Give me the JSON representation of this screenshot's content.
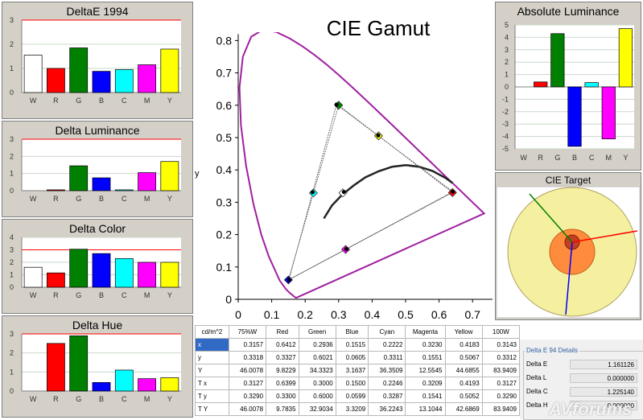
{
  "bar_panels": [
    {
      "title": "DeltaE 1994",
      "categories": [
        "W",
        "R",
        "G",
        "B",
        "C",
        "M",
        "Y"
      ],
      "values": [
        1.55,
        1.0,
        1.85,
        0.88,
        0.95,
        1.15,
        1.8
      ],
      "ylim": [
        0,
        3
      ],
      "yticks": [
        "0",
        "1",
        "2",
        "3"
      ],
      "threshold": 3
    },
    {
      "title": "Delta Luminance",
      "categories": [
        "W",
        "R",
        "G",
        "B",
        "C",
        "M",
        "Y"
      ],
      "values": [
        0,
        0.05,
        1.45,
        0.75,
        0.05,
        1.05,
        1.7
      ],
      "ylim": [
        0,
        3
      ],
      "yticks": [
        "0",
        "1",
        "2",
        "3"
      ],
      "threshold": 3
    },
    {
      "title": "Delta Color",
      "categories": [
        "W",
        "R",
        "G",
        "B",
        "C",
        "M",
        "Y"
      ],
      "values": [
        1.6,
        1.15,
        3.05,
        2.7,
        2.3,
        2.0,
        2.0
      ],
      "ylim": [
        0,
        4
      ],
      "yticks": [
        "0",
        "1",
        "2",
        "3",
        "4"
      ],
      "threshold": 3
    },
    {
      "title": "Delta Hue",
      "categories": [
        "W",
        "R",
        "G",
        "B",
        "C",
        "M",
        "Y"
      ],
      "values": [
        0,
        2.5,
        2.9,
        0.45,
        1.1,
        0.65,
        0.7
      ],
      "ylim": [
        0,
        3
      ],
      "yticks": [
        "0",
        "1",
        "2",
        "3"
      ],
      "threshold": 3
    }
  ],
  "bar_colors": [
    "#ffffff",
    "#ff0000",
    "#008000",
    "#0000ff",
    "#00ffff",
    "#ff00ff",
    "#ffff00"
  ],
  "abs_luminance": {
    "title": "Absolute Luminance",
    "categories": [
      "W",
      "R",
      "G",
      "B",
      "C",
      "M",
      "Y"
    ],
    "values": [
      0,
      0.4,
      4.3,
      -4.8,
      0.35,
      -4.2,
      4.7
    ],
    "ylim": [
      -5,
      5
    ],
    "yticks": [
      "5",
      "4",
      "3",
      "2",
      "1",
      "0",
      "-1",
      "-2",
      "-3",
      "-4",
      "-5"
    ]
  },
  "cie_target": {
    "title": "CIE Target"
  },
  "chart_data": {
    "type": "scatter",
    "title": "CIE Gamut",
    "xlabel": "",
    "ylabel": "y",
    "xlim": [
      0,
      0.8
    ],
    "ylim": [
      0,
      0.85
    ],
    "xticks": [
      "0",
      "0.1",
      "0.2",
      "0.3",
      "0.4",
      "0.5",
      "0.6",
      "0.7"
    ],
    "yticks": [
      "0",
      "0.1",
      "0.2",
      "0.3",
      "0.4",
      "0.5",
      "0.6",
      "0.7",
      "0.8"
    ],
    "reference_points": [
      {
        "name": "R",
        "x": 0.64,
        "y": 0.33,
        "color": "#ff0000"
      },
      {
        "name": "G",
        "x": 0.3,
        "y": 0.6,
        "color": "#008000"
      },
      {
        "name": "B",
        "x": 0.15,
        "y": 0.06,
        "color": "#0000ff"
      },
      {
        "name": "C",
        "x": 0.2246,
        "y": 0.3287,
        "color": "#00ffff"
      },
      {
        "name": "M",
        "x": 0.3209,
        "y": 0.1541,
        "color": "#ff00ff"
      },
      {
        "name": "Y",
        "x": 0.4193,
        "y": 0.5052,
        "color": "#ffff00"
      },
      {
        "name": "W",
        "x": 0.3127,
        "y": 0.329,
        "color": "#ffffff"
      }
    ],
    "measured_points": [
      {
        "name": "R",
        "x": 0.6412,
        "y": 0.3327
      },
      {
        "name": "G",
        "x": 0.2936,
        "y": 0.6021
      },
      {
        "name": "B",
        "x": 0.1515,
        "y": 0.0605
      },
      {
        "name": "C",
        "x": 0.2222,
        "y": 0.3311
      },
      {
        "name": "M",
        "x": 0.323,
        "y": 0.1551
      },
      {
        "name": "Y",
        "x": 0.4183,
        "y": 0.5067
      },
      {
        "name": "W",
        "x": 0.3157,
        "y": 0.3318
      }
    ]
  },
  "table": {
    "headers": [
      "cd/m^2",
      "75%W",
      "Red",
      "Green",
      "Blue",
      "Cyan",
      "Magenta",
      "Yellow",
      "100W"
    ],
    "rows": [
      {
        "label": "x",
        "cells": [
          "0.3157",
          "0.6412",
          "0.2936",
          "0.1515",
          "0.2222",
          "0.3230",
          "0.4183",
          "0.3143"
        ]
      },
      {
        "label": "y",
        "cells": [
          "0.3318",
          "0.3327",
          "0.6021",
          "0.0605",
          "0.3311",
          "0.1551",
          "0.5067",
          "0.3312"
        ]
      },
      {
        "label": "Y",
        "cells": [
          "46.0078",
          "9.8229",
          "34.3323",
          "3.1637",
          "36.3509",
          "12.5545",
          "44.6855",
          "83.9409"
        ]
      },
      {
        "label": "T x",
        "cells": [
          "0.3127",
          "0.6399",
          "0.3000",
          "0.1500",
          "0.2246",
          "0.3209",
          "0.4193",
          "0.3127"
        ]
      },
      {
        "label": "T y",
        "cells": [
          "0.3290",
          "0.3300",
          "0.6000",
          "0.0599",
          "0.3287",
          "0.1541",
          "0.5052",
          "0.3290"
        ]
      },
      {
        "label": "T Y",
        "cells": [
          "46.0078",
          "9.7835",
          "32.9034",
          "3.3209",
          "36.2243",
          "13.1044",
          "42.6869",
          "83.9409"
        ]
      }
    ]
  },
  "de94": {
    "legend": "Delta E 94 Details",
    "rows": [
      {
        "label": "Delta E",
        "value": "1.161126"
      },
      {
        "label": "Delta L",
        "value": "0.000000"
      },
      {
        "label": "Delta C",
        "value": "1.225140"
      },
      {
        "label": "Delta H",
        "value": "0.000000"
      }
    ]
  },
  "watermark": "AVforums"
}
